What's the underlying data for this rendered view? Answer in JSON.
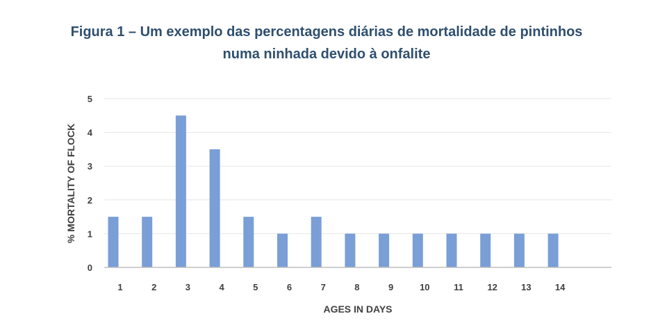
{
  "title": {
    "line1": "Figura 1 – Um exemplo das percentagens diárias de mortalidade de pintinhos",
    "line2": "numa ninhada devido à onfalite"
  },
  "colors": {
    "bar": "#7a9ed6",
    "axis": "#bfbfbf",
    "grid": "#e6e6e6",
    "title": "#2f4f6f"
  },
  "chart_data": {
    "type": "bar",
    "title": "Figura 1 – Um exemplo das percentagens diárias de mortalidade de pintinhos numa ninhada devido à onfalite",
    "xlabel": "AGES IN DAYS",
    "ylabel": "% MORTALITY OF FLOCK",
    "categories": [
      "1",
      "2",
      "3",
      "4",
      "5",
      "6",
      "7",
      "8",
      "9",
      "10",
      "11",
      "12",
      "13",
      "14"
    ],
    "values": [
      1.5,
      1.5,
      4.5,
      3.5,
      1.5,
      1,
      1.5,
      1,
      1,
      1,
      1,
      1,
      1,
      1
    ],
    "ylim": [
      0,
      5
    ],
    "yticks": [
      "0",
      "1",
      "2",
      "3",
      "4",
      "5"
    ],
    "grid": true,
    "legend": "none"
  }
}
